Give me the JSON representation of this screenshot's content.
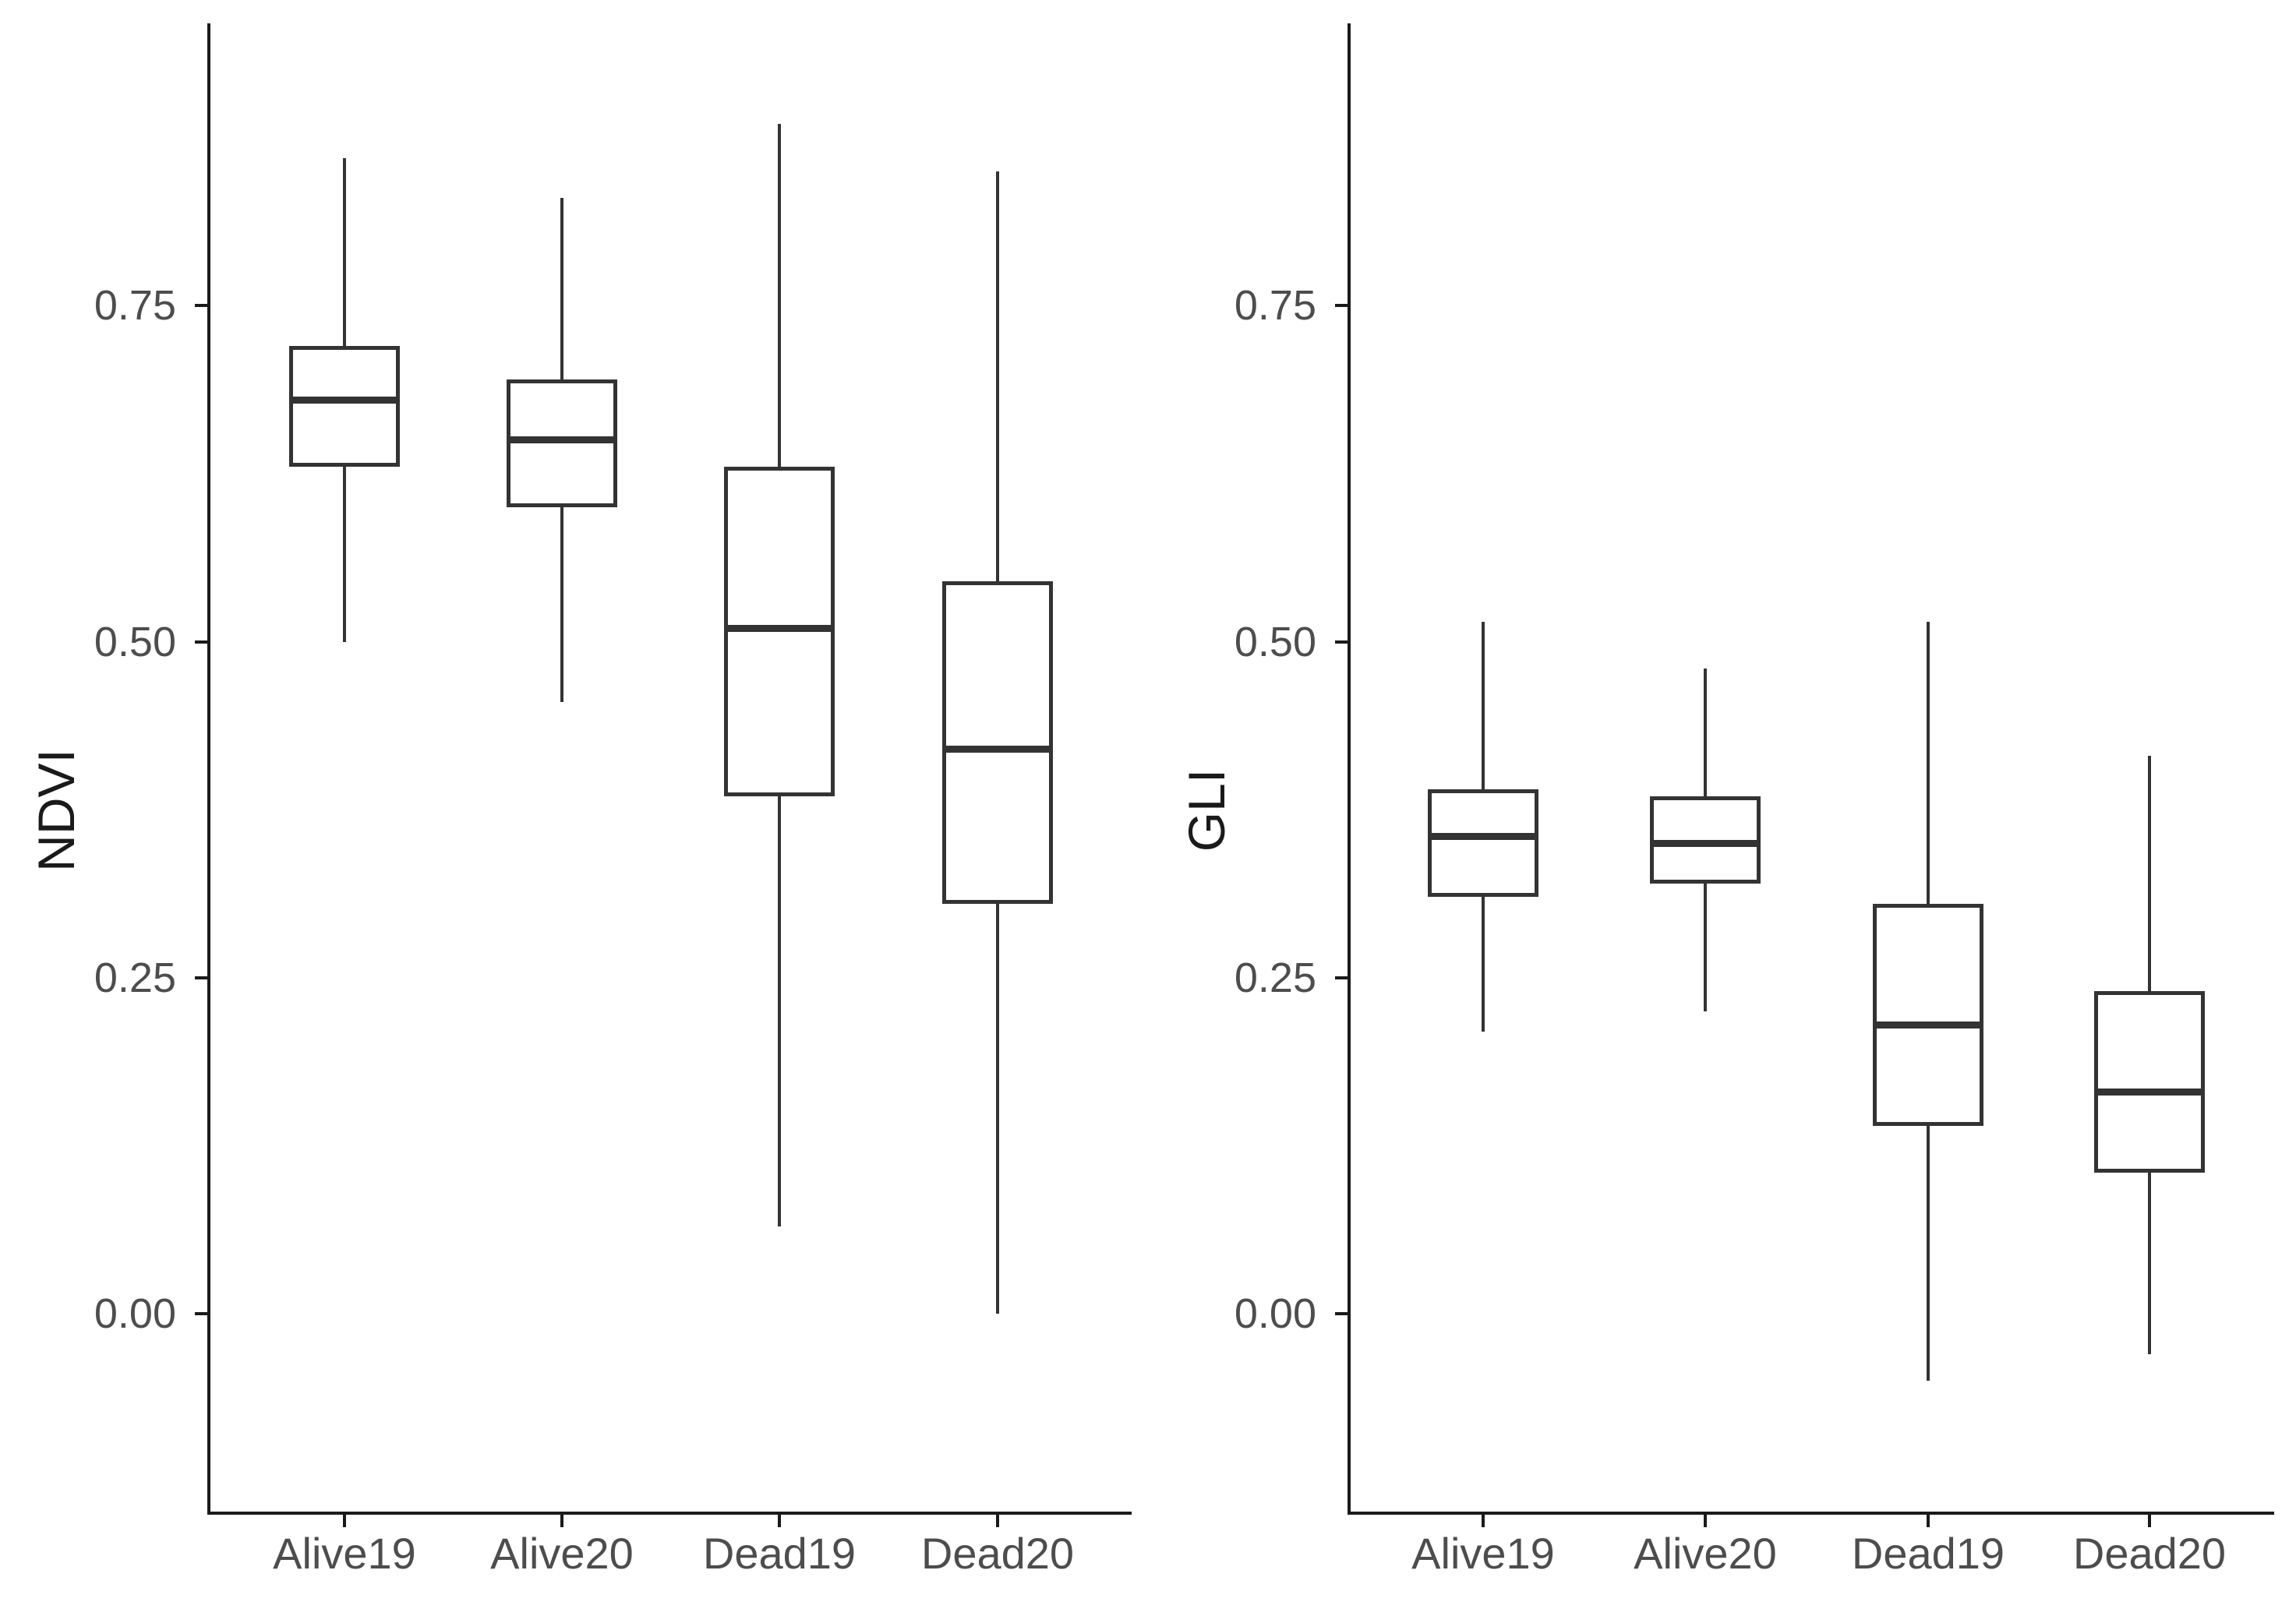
{
  "figure": {
    "background": "#ffffff",
    "description": "Two side-by-side boxplot panels comparing vegetation indices across groups"
  },
  "colors": {
    "axis_line": "#1a1a1a",
    "box_stroke": "#333333",
    "tick_label_text": "#4d4d4d",
    "axis_title_text": "#1a1a1a",
    "box_fill": "#ffffff"
  },
  "chart_data": [
    {
      "type": "boxplot",
      "panel": "left",
      "title": "",
      "xlabel": "",
      "ylabel": "NDVI",
      "grid": false,
      "legend": false,
      "categories": [
        "Alive19",
        "Alive20",
        "Dead19",
        "Dead20"
      ],
      "ytick_labels": [
        "0.00",
        "0.25",
        "0.50",
        "0.75"
      ],
      "ytick_values": [
        0.0,
        0.25,
        0.5,
        0.75
      ],
      "ylim": [
        -0.15,
        0.96
      ],
      "series": [
        {
          "category": "Alive19",
          "lower_whisker": 0.5,
          "q1": 0.63,
          "median": 0.68,
          "q3": 0.72,
          "upper_whisker": 0.86
        },
        {
          "category": "Alive20",
          "lower_whisker": 0.455,
          "q1": 0.6,
          "median": 0.65,
          "q3": 0.695,
          "upper_whisker": 0.83
        },
        {
          "category": "Dead19",
          "lower_whisker": 0.065,
          "q1": 0.385,
          "median": 0.51,
          "q3": 0.63,
          "upper_whisker": 0.885
        },
        {
          "category": "Dead20",
          "lower_whisker": 0.0,
          "q1": 0.305,
          "median": 0.42,
          "q3": 0.545,
          "upper_whisker": 0.85
        }
      ]
    },
    {
      "type": "boxplot",
      "panel": "right",
      "title": "",
      "xlabel": "",
      "ylabel": "GLI",
      "grid": false,
      "legend": false,
      "categories": [
        "Alive19",
        "Alive20",
        "Dead19",
        "Dead20"
      ],
      "ytick_labels": [
        "0.00",
        "0.25",
        "0.50",
        "0.75"
      ],
      "ytick_values": [
        0.0,
        0.25,
        0.5,
        0.75
      ],
      "ylim": [
        -0.15,
        0.96
      ],
      "series": [
        {
          "category": "Alive19",
          "lower_whisker": 0.21,
          "q1": 0.31,
          "median": 0.355,
          "q3": 0.39,
          "upper_whisker": 0.515
        },
        {
          "category": "Alive20",
          "lower_whisker": 0.225,
          "q1": 0.32,
          "median": 0.35,
          "q3": 0.385,
          "upper_whisker": 0.48
        },
        {
          "category": "Dead19",
          "lower_whisker": -0.05,
          "q1": 0.14,
          "median": 0.215,
          "q3": 0.305,
          "upper_whisker": 0.515
        },
        {
          "category": "Dead20",
          "lower_whisker": -0.03,
          "q1": 0.105,
          "median": 0.165,
          "q3": 0.24,
          "upper_whisker": 0.415
        }
      ]
    }
  ]
}
